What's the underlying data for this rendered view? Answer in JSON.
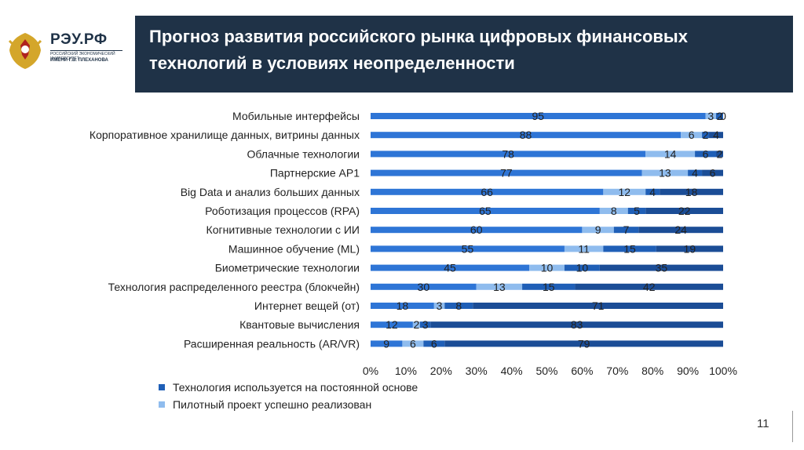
{
  "header": {
    "title": "Прогноз развития российского рынка цифровых финансовых\nтехнологий в условиях неопределенности"
  },
  "logo": {
    "name": "РЭУ.РФ",
    "sub1": "РОССИЙСКИЙ ЭКОНОМИЧЕСКИЙ УНИВЕРСИТЕТ",
    "sub2": "ИМЕНИ Г.В. ПЛЕХАНОВА"
  },
  "page_number": "11",
  "colors": {
    "header": "#1f3247",
    "series1": "#2e75d6",
    "series2": "#8fbcee",
    "series3": "#1f5fb7",
    "series4": "#1b4d96"
  },
  "chart_data": {
    "type": "bar",
    "orientation": "horizontal",
    "stacked": true,
    "percent": true,
    "categories": [
      "Мобильные интерфейсы",
      "Корпоративное хранилище данных, витрины данных",
      "Облачные технологии",
      "Партнерские AP1",
      "Big Data и анализ больших данных",
      "Роботизация процессов (RPA)",
      "Когнитивные технологии с ИИ",
      "Машинное обучение (ML)",
      "Биометрические технологии",
      "Технология распределенного реестра (блокчейн)",
      "Интернет вещей (от)",
      "Квантовые вычисления",
      "Расширенная реальность (AR/VR)"
    ],
    "series": [
      {
        "name": "Технология используется на постоянной основе",
        "values": [
          95,
          88,
          78,
          77,
          66,
          65,
          60,
          55,
          45,
          30,
          18,
          12,
          9
        ]
      },
      {
        "name": "Пилотный проект успешно реализован",
        "values": [
          3,
          6,
          14,
          13,
          12,
          8,
          9,
          11,
          10,
          13,
          3,
          2,
          6
        ]
      },
      {
        "name": "",
        "values": [
          2,
          2,
          6,
          4,
          4,
          5,
          7,
          15,
          10,
          15,
          8,
          3,
          6
        ]
      },
      {
        "name": "",
        "values": [
          0,
          4,
          2,
          6,
          18,
          22,
          24,
          19,
          35,
          42,
          71,
          83,
          79
        ]
      }
    ],
    "xticks": [
      "0%",
      "10%",
      "20%",
      "30%",
      "40%",
      "50%",
      "60%",
      "70%",
      "80%",
      "90%",
      "100%"
    ],
    "xlim": [
      0,
      100
    ]
  }
}
